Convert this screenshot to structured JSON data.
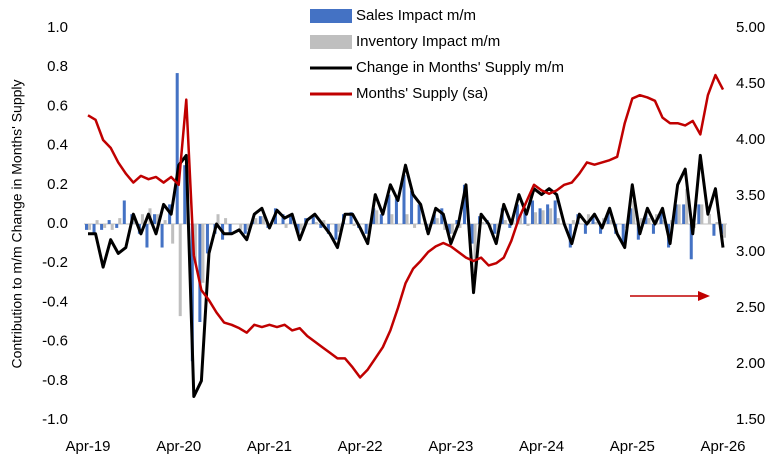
{
  "chart_data": {
    "type": "combo",
    "y_label": "Contribution to m/m Change in Months' Supply",
    "categories": [
      "Apr-19",
      null,
      null,
      null,
      null,
      null,
      null,
      null,
      null,
      null,
      null,
      null,
      "Apr-20",
      null,
      null,
      null,
      null,
      null,
      null,
      null,
      null,
      null,
      null,
      null,
      "Apr-21",
      null,
      null,
      null,
      null,
      null,
      null,
      null,
      null,
      null,
      null,
      null,
      "Apr-22",
      null,
      null,
      null,
      null,
      null,
      null,
      null,
      null,
      null,
      null,
      null,
      "Apr-23",
      null,
      null,
      null,
      null,
      null,
      null,
      null,
      null,
      null,
      null,
      null,
      "Apr-24",
      null,
      null,
      null,
      null,
      null,
      null,
      null,
      null,
      null,
      null,
      null,
      "Apr-25",
      null,
      null,
      null,
      null,
      null,
      null,
      null,
      null,
      null,
      null,
      null,
      "Apr-26"
    ],
    "ylim": [
      -1,
      1
    ],
    "yticks": [
      {
        "value": -1,
        "label": "-1.0"
      },
      -0.8,
      -0.6,
      -0.4,
      -0.2,
      {
        "value": 0,
        "label": "0.0"
      },
      0.2,
      0.4,
      0.6,
      0.8,
      {
        "value": 1,
        "label": "1.0"
      }
    ],
    "y2lim": [
      1.5,
      5
    ],
    "y2ticks": [
      {
        "value": 1.5,
        "label": "1.50"
      },
      {
        "value": 2,
        "label": "2.00"
      },
      {
        "value": 2.5,
        "label": "2.50"
      },
      {
        "value": 3,
        "label": "3.00"
      },
      {
        "value": 3.5,
        "label": "3.50"
      },
      {
        "value": 4,
        "label": "4.00"
      },
      {
        "value": 4.5,
        "label": "4.50"
      },
      {
        "value": 5,
        "label": "5.00"
      }
    ],
    "series": [
      {
        "name": "Sales Impact m/m",
        "type": "bar",
        "color": "#4472c4",
        "values": [
          -0.03,
          -0.05,
          -0.03,
          0.02,
          -0.02,
          0.12,
          0.05,
          -0.05,
          -0.12,
          0.05,
          -0.12,
          0.1,
          0.77,
          0.3,
          -0.7,
          -0.5,
          -0.15,
          -0.05,
          -0.08,
          -0.05,
          0.0,
          -0.05,
          0.02,
          0.04,
          -0.02,
          0.08,
          0.05,
          0.04,
          -0.05,
          0.03,
          0.04,
          -0.02,
          -0.05,
          -0.08,
          0.05,
          0.06,
          -0.02,
          -0.05,
          0.08,
          0.05,
          0.15,
          0.13,
          0.25,
          0.17,
          0.1,
          -0.03,
          0.05,
          0.08,
          -0.05,
          0.02,
          0.2,
          -0.1,
          0.04,
          0.02,
          -0.05,
          0.08,
          -0.02,
          0.1,
          0.06,
          0.12,
          0.08,
          0.1,
          0.12,
          0.0,
          -0.12,
          0.05,
          -0.05,
          0.04,
          -0.05,
          0.06,
          -0.05,
          -0.1,
          0.08,
          -0.08,
          0.05,
          -0.05,
          0.06,
          -0.12,
          0.1,
          0.1,
          -0.18,
          0.1,
          0.0,
          -0.06,
          -0.05
        ]
      },
      {
        "name": "Inventory Impact m/m",
        "type": "bar",
        "color": "#bfbfbf",
        "values": [
          -0.03,
          0.02,
          -0.02,
          -0.03,
          0.03,
          0.0,
          0.03,
          0.05,
          0.08,
          0.05,
          0.02,
          -0.1,
          -0.47,
          0.3,
          -0.2,
          -0.3,
          0.0,
          0.05,
          0.03,
          0.0,
          -0.03,
          -0.03,
          0.03,
          0.04,
          0.0,
          0.0,
          -0.02,
          0.01,
          -0.03,
          0.0,
          0.01,
          0.02,
          0.0,
          -0.04,
          0.0,
          -0.01,
          0.0,
          -0.05,
          0.07,
          0.0,
          0.05,
          0.0,
          0.05,
          -0.02,
          0.0,
          -0.02,
          0.03,
          -0.03,
          -0.05,
          -0.02,
          0.0,
          -0.25,
          0.01,
          -0.02,
          -0.05,
          0.02,
          0.02,
          0.05,
          -0.01,
          0.06,
          0.07,
          0.08,
          0.03,
          0.0,
          0.02,
          0.0,
          0.05,
          0.01,
          0.03,
          0.02,
          0.0,
          -0.02,
          0.12,
          0.03,
          0.03,
          0.05,
          0.02,
          0.02,
          0.1,
          0.18,
          -0.02,
          0.1,
          0.05,
          0.01,
          -0.07
        ]
      },
      {
        "name": "Change in Months' Supply m/m",
        "type": "line",
        "color": "#000000",
        "values": [
          -0.05,
          -0.05,
          -0.22,
          -0.08,
          -0.15,
          -0.12,
          0.05,
          -0.05,
          0.05,
          -0.05,
          0.1,
          0.05,
          0.3,
          0.35,
          -0.88,
          -0.8,
          -0.15,
          0.0,
          -0.05,
          -0.05,
          -0.03,
          -0.08,
          0.05,
          0.08,
          -0.02,
          0.07,
          0.03,
          0.05,
          -0.08,
          0.02,
          0.05,
          0.0,
          -0.05,
          -0.12,
          0.05,
          0.05,
          -0.02,
          -0.1,
          0.15,
          0.05,
          0.2,
          0.12,
          0.3,
          0.15,
          0.1,
          -0.05,
          0.08,
          0.05,
          -0.1,
          0.0,
          0.2,
          -0.35,
          0.05,
          0.0,
          -0.1,
          0.1,
          0.0,
          0.15,
          0.05,
          0.18,
          0.15,
          0.18,
          0.15,
          0.0,
          -0.1,
          0.05,
          0.0,
          0.05,
          -0.02,
          0.08,
          -0.05,
          -0.12,
          0.2,
          -0.05,
          0.08,
          0.0,
          0.08,
          -0.1,
          0.2,
          0.28,
          -0.05,
          0.35,
          0.05,
          0.18,
          -0.12
        ]
      },
      {
        "name": "Months' Supply (sa)",
        "type": "line",
        "axis": "y2",
        "color": "#c00000",
        "values": [
          4.22,
          4.18,
          4.0,
          3.93,
          3.8,
          3.7,
          3.62,
          3.68,
          3.65,
          3.67,
          3.62,
          3.67,
          3.6,
          4.36,
          2.97,
          2.66,
          2.57,
          2.46,
          2.37,
          2.35,
          2.32,
          2.28,
          2.35,
          2.33,
          2.35,
          2.33,
          2.35,
          2.3,
          2.32,
          2.25,
          2.2,
          2.15,
          2.1,
          2.05,
          2.05,
          1.97,
          1.88,
          1.95,
          2.05,
          2.15,
          2.3,
          2.5,
          2.72,
          2.85,
          2.92,
          3.0,
          3.05,
          3.08,
          3.05,
          3.0,
          2.95,
          2.92,
          2.95,
          2.88,
          2.9,
          2.95,
          3.1,
          3.3,
          3.45,
          3.6,
          3.55,
          3.52,
          3.55,
          3.6,
          3.62,
          3.7,
          3.8,
          3.78,
          3.8,
          3.82,
          3.85,
          4.15,
          4.37,
          4.4,
          4.38,
          4.35,
          4.2,
          4.15,
          4.15,
          4.13,
          4.17,
          4.05,
          4.4,
          4.58,
          4.45
        ]
      }
    ],
    "legend": "upper center"
  }
}
